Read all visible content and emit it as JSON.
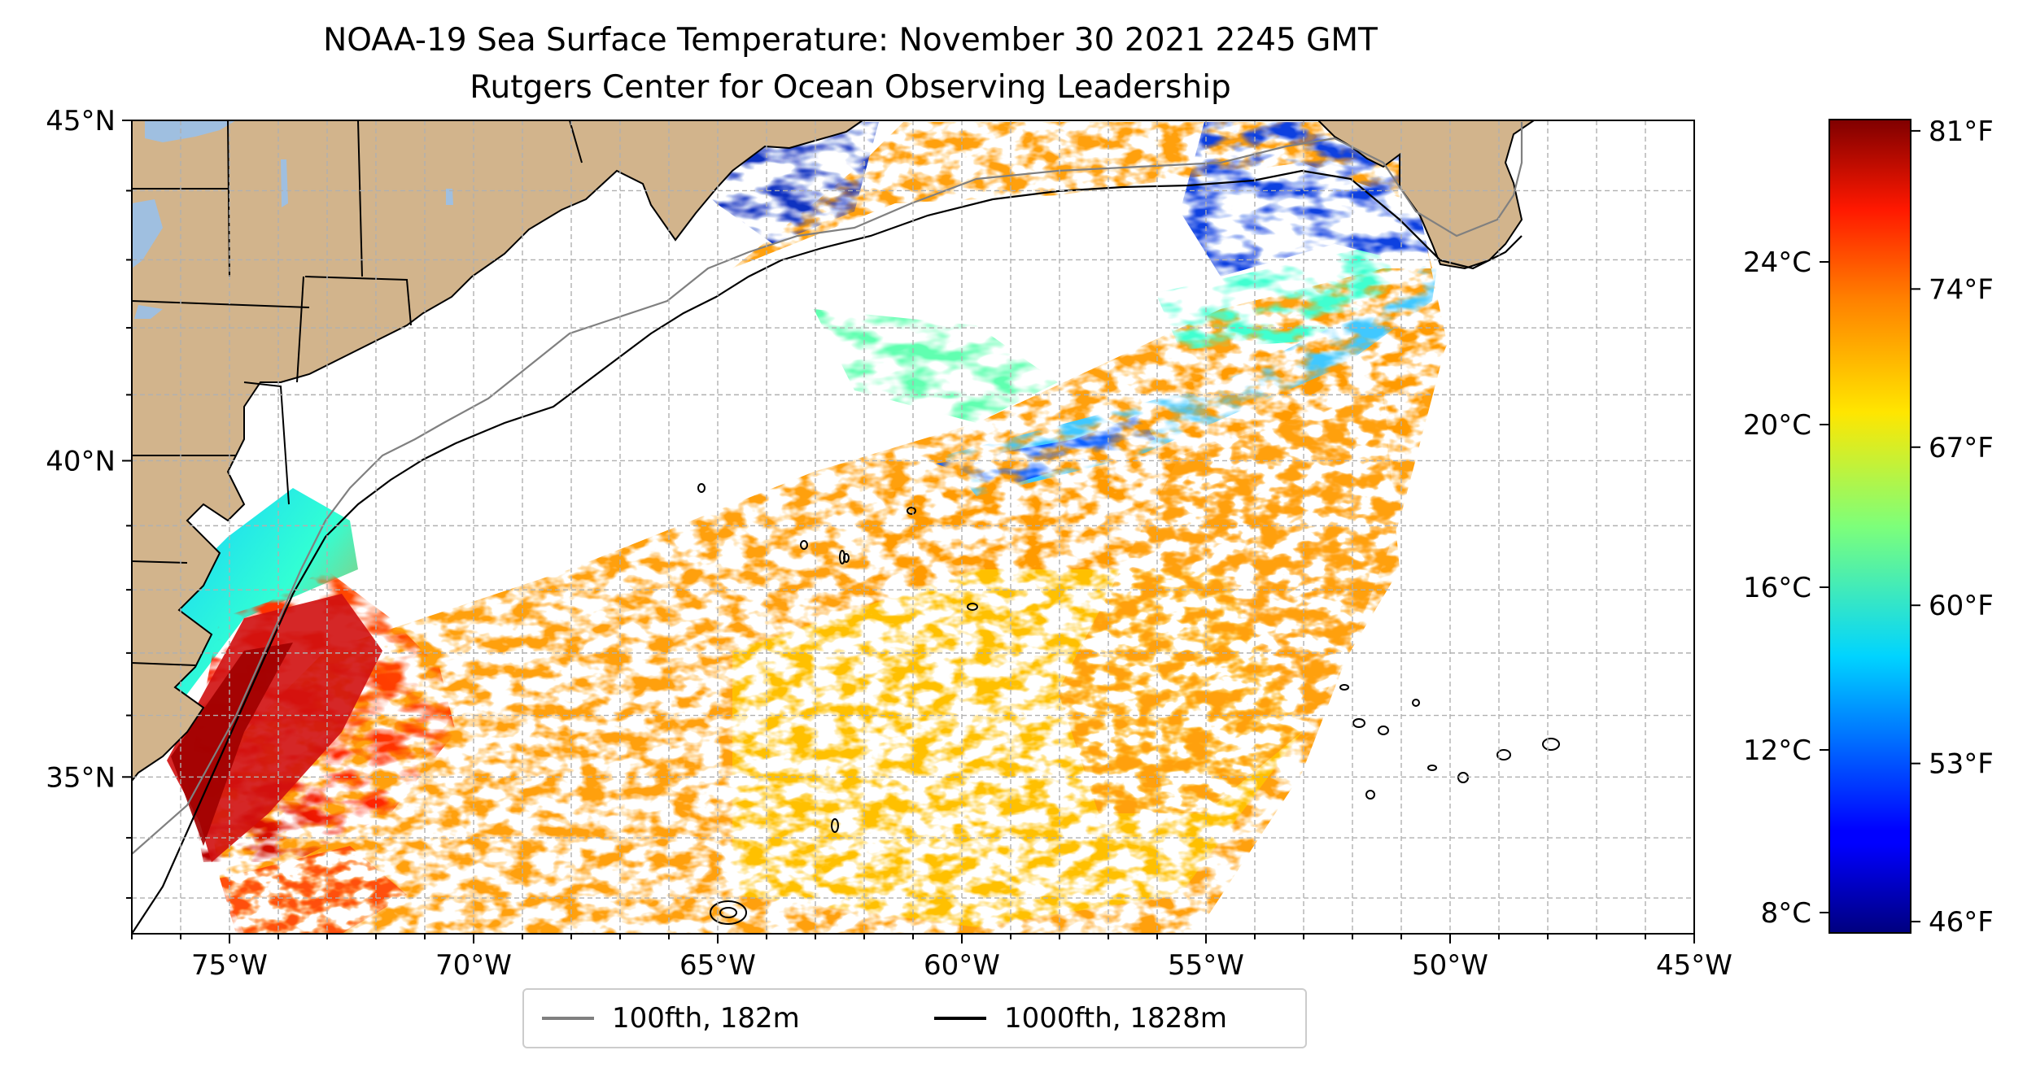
{
  "title": {
    "line1": "NOAA-19 Sea Surface Temperature: November 30 2021 2245 GMT",
    "line2": "Rutgers Center for Ocean Observing Leadership"
  },
  "map": {
    "lon_range": [
      -77,
      -45
    ],
    "lat_range": [
      32.4,
      45
    ],
    "x_ticks": [
      {
        "lon": -75,
        "label": "75°W"
      },
      {
        "lon": -70,
        "label": "70°W"
      },
      {
        "lon": -65,
        "label": "65°W"
      },
      {
        "lon": -60,
        "label": "60°W"
      },
      {
        "lon": -55,
        "label": "55°W"
      },
      {
        "lon": -50,
        "label": "50°W"
      },
      {
        "lon": -45,
        "label": "45°W"
      }
    ],
    "y_ticks": [
      {
        "lat": 45,
        "label": "45°N"
      },
      {
        "lat": 40,
        "label": "40°N"
      },
      {
        "lat": 35,
        "label": "35°N"
      }
    ],
    "gridlines": true,
    "land_color": "#d2b48c",
    "lake_color": "#9fbfe0"
  },
  "legend": {
    "items": [
      {
        "label": "100fth, 182m",
        "color": "#808080"
      },
      {
        "label": "1000fth, 1828m",
        "color": "#000000"
      }
    ],
    "placement": "bottom-center"
  },
  "colorbar": {
    "colormap": "jet",
    "celsius_ticks": [
      {
        "value": 24,
        "label": "24°C"
      },
      {
        "value": 20,
        "label": "20°C"
      },
      {
        "value": 16,
        "label": "16°C"
      },
      {
        "value": 12,
        "label": "12°C"
      },
      {
        "value": 8,
        "label": "8°C"
      }
    ],
    "fahrenheit_ticks": [
      {
        "value": 81,
        "label": "81°F"
      },
      {
        "value": 74,
        "label": "74°F"
      },
      {
        "value": 67,
        "label": "67°F"
      },
      {
        "value": 60,
        "label": "60°F"
      },
      {
        "value": 53,
        "label": "53°F"
      },
      {
        "value": 46,
        "label": "46°F"
      }
    ],
    "range_f": [
      45.5,
      81.5
    ]
  }
}
